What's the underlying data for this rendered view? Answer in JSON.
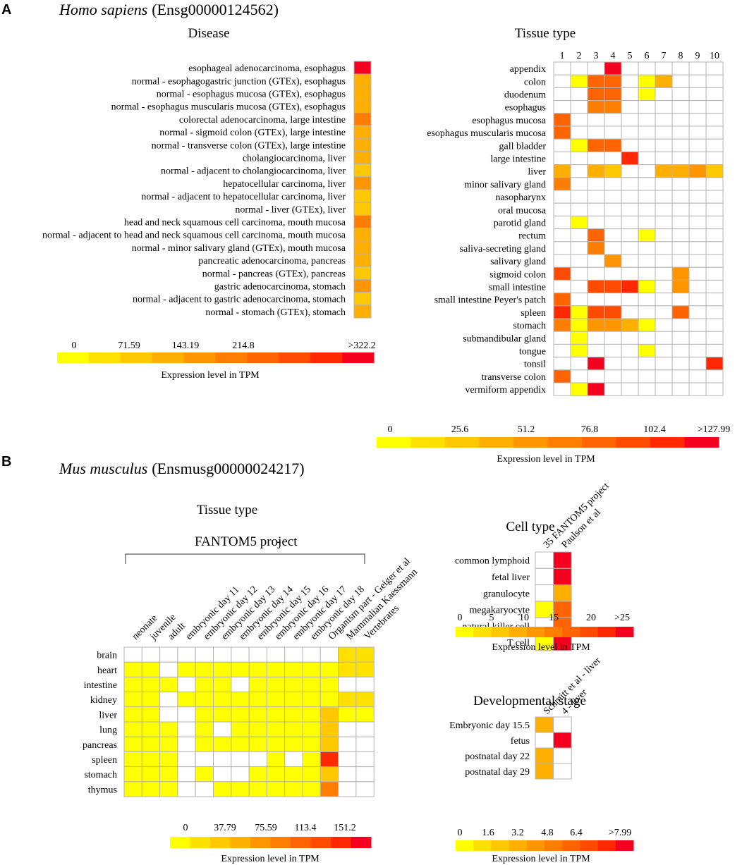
{
  "panels": {
    "a": {
      "letter": "A",
      "species": "Homo sapiens",
      "gene": "(Ensg00000124562)"
    },
    "b": {
      "letter": "B",
      "species": "Mus musculus",
      "gene": "(Ensmusg00000024217)"
    }
  },
  "colors": {
    "palette": [
      "#FFFF00",
      "#FFE100",
      "#FFC800",
      "#FFAF00",
      "#FF9600",
      "#FF7D00",
      "#FF6400",
      "#FF4B00",
      "#FF2800",
      "#F5001E"
    ],
    "grid": "#B4B4B4",
    "empty": "#FFFFFF"
  },
  "chart_data": [
    {
      "id": "human_disease",
      "type": "heatmap",
      "title": "Disease",
      "rows": [
        "esophageal adenocarcinoma, esophagus",
        "normal - esophagogastric junction (GTEx), esophagus",
        "normal - esophagus mucosa (GTEx), esophagus",
        "normal - esophagus muscularis mucosa (GTEx), esophagus",
        "colorectal adenocarcinoma, large intestine",
        "normal - sigmoid colon (GTEx), large intestine",
        "normal - transverse colon (GTEx), large intestine",
        "cholangiocarcinoma, liver",
        "normal - adjacent to cholangiocarcinoma, liver",
        "hepatocellular carcinoma, liver",
        "normal - adjacent to hepatocellular carcinoma, liver",
        "normal - liver (GTEx), liver",
        "head and neck squamous cell carcinoma, mouth mucosa",
        "normal - adjacent to head and neck squamous cell carcinoma, mouth mucosa",
        "normal - minor salivary gland (GTEx), mouth mucosa",
        "pancreatic adenocarcinoma, pancreas",
        "normal - pancreas (GTEx), pancreas",
        "gastric adenocarcinoma, stomach",
        "normal - adjacent to gastric adenocarcinoma, stomach",
        "normal - stomach (GTEx), stomach"
      ],
      "columns": [
        ""
      ],
      "levels": [
        [
          9
        ],
        [
          3
        ],
        [
          3
        ],
        [
          3
        ],
        [
          5
        ],
        [
          3
        ],
        [
          3
        ],
        [
          3
        ],
        [
          2
        ],
        [
          4
        ],
        [
          2
        ],
        [
          2
        ],
        [
          5
        ],
        [
          3
        ],
        [
          3
        ],
        [
          3
        ],
        [
          2
        ],
        [
          4
        ],
        [
          2
        ],
        [
          3
        ]
      ],
      "colorbar": {
        "ticks": [
          "0",
          "71.59",
          "143.19",
          "214.8",
          ">322.2"
        ],
        "label": "Expression level in TPM",
        "range": [
          0,
          322.2
        ]
      }
    },
    {
      "id": "human_tissue",
      "type": "heatmap",
      "title": "Tissue type",
      "rows": [
        "appendix",
        "colon",
        "duodenum",
        "esophagus",
        "esophagus mucosa",
        "esophagus muscularis mucosa",
        "gall bladder",
        "large intestine",
        "liver",
        "minor salivary gland",
        "nasopharynx",
        "oral mucosa",
        "parotid gland",
        "rectum",
        "saliva-secreting gland",
        "salivary gland",
        "sigmoid colon",
        "small intestine",
        "small intestine Peyer's patch",
        "spleen",
        "stomach",
        "submandibular gland",
        "tongue",
        "tonsil",
        "transverse colon",
        "vermiform appendix"
      ],
      "columns": [
        "1",
        "2",
        "3",
        "4",
        "5",
        "6",
        "7",
        "8",
        "9",
        "10"
      ],
      "levels": [
        [
          null,
          null,
          null,
          9,
          null,
          null,
          null,
          null,
          null,
          null
        ],
        [
          null,
          0,
          6,
          6,
          null,
          0,
          3,
          null,
          null,
          null
        ],
        [
          null,
          null,
          6,
          6,
          null,
          0,
          null,
          null,
          null,
          null
        ],
        [
          null,
          null,
          5,
          5,
          null,
          null,
          null,
          null,
          null,
          null
        ],
        [
          6,
          null,
          null,
          null,
          null,
          null,
          null,
          null,
          null,
          null
        ],
        [
          6,
          null,
          null,
          null,
          null,
          null,
          null,
          null,
          null,
          null
        ],
        [
          null,
          0,
          6,
          6,
          null,
          null,
          null,
          null,
          null,
          null
        ],
        [
          null,
          null,
          null,
          null,
          8,
          null,
          null,
          null,
          null,
          null
        ],
        [
          3,
          null,
          3,
          2,
          null,
          null,
          3,
          3,
          4,
          2
        ],
        [
          5,
          null,
          null,
          null,
          null,
          null,
          null,
          null,
          null,
          null
        ],
        [
          null,
          null,
          null,
          null,
          null,
          null,
          null,
          null,
          null,
          null
        ],
        [
          null,
          null,
          null,
          null,
          null,
          null,
          null,
          null,
          null,
          null
        ],
        [
          null,
          0,
          null,
          null,
          null,
          null,
          null,
          null,
          null,
          null
        ],
        [
          null,
          null,
          6,
          null,
          null,
          0,
          null,
          null,
          null,
          null
        ],
        [
          null,
          null,
          5,
          null,
          null,
          null,
          null,
          null,
          null,
          null
        ],
        [
          null,
          null,
          null,
          4,
          null,
          null,
          null,
          null,
          null,
          null
        ],
        [
          7,
          null,
          null,
          null,
          null,
          null,
          null,
          4,
          null,
          null
        ],
        [
          null,
          null,
          7,
          7,
          8,
          0,
          null,
          4,
          null,
          null
        ],
        [
          6,
          null,
          null,
          null,
          null,
          null,
          null,
          null,
          null,
          null
        ],
        [
          8,
          0,
          7,
          7,
          null,
          null,
          null,
          6,
          null,
          null
        ],
        [
          5,
          0,
          4,
          4,
          3,
          0,
          null,
          null,
          null,
          null
        ],
        [
          null,
          0,
          null,
          null,
          null,
          null,
          null,
          null,
          null,
          null
        ],
        [
          null,
          0,
          null,
          null,
          null,
          0,
          null,
          null,
          null,
          null
        ],
        [
          null,
          null,
          9,
          null,
          null,
          null,
          null,
          null,
          null,
          8
        ],
        [
          6,
          null,
          null,
          null,
          null,
          null,
          null,
          null,
          null,
          null
        ],
        [
          null,
          0,
          9,
          null,
          null,
          null,
          null,
          null,
          null,
          null
        ]
      ],
      "colorbar": {
        "ticks": [
          "0",
          "25.6",
          "51.2",
          "76.8",
          "102.4",
          ">127.99"
        ],
        "label": "Expression level in TPM",
        "range": [
          0,
          127.99
        ]
      }
    },
    {
      "id": "mouse_tissue",
      "type": "heatmap",
      "title": "Tissue type",
      "group_label": "FANTOM5 project",
      "group_dash": "-",
      "rows": [
        "brain",
        "heart",
        "intestine",
        "kidney",
        "liver",
        "lung",
        "pancreas",
        "spleen",
        "stomach",
        "thymus"
      ],
      "columns": [
        "neonate",
        "juvenile",
        "adult",
        "embryonic day 11",
        "embryonic day 12",
        "embryonic day 13",
        "embryonic day 14",
        "embryonic day 15",
        "embryonic day 16",
        "embryonic day 17",
        "embryonic day 18",
        "Organism part - Geiger et al",
        "Mammalian Kaessmann",
        "Vertebrates"
      ],
      "levels": [
        [
          null,
          null,
          null,
          null,
          null,
          null,
          null,
          null,
          null,
          null,
          null,
          null,
          1,
          1
        ],
        [
          0,
          0,
          null,
          0,
          0,
          0,
          0,
          0,
          0,
          0,
          0,
          0,
          1,
          1
        ],
        [
          0,
          0,
          0,
          null,
          0,
          0,
          null,
          0,
          0,
          0,
          0,
          0,
          null,
          null
        ],
        [
          0,
          0,
          null,
          0,
          0,
          0,
          0,
          0,
          0,
          0,
          0,
          0,
          1,
          1
        ],
        [
          0,
          0,
          null,
          null,
          0,
          0,
          0,
          0,
          0,
          0,
          0,
          2,
          0,
          0
        ],
        [
          0,
          0,
          0,
          null,
          0,
          null,
          0,
          0,
          0,
          0,
          0,
          2,
          null,
          null
        ],
        [
          0,
          0,
          0,
          null,
          0,
          0,
          0,
          0,
          0,
          0,
          0,
          2,
          null,
          null
        ],
        [
          0,
          0,
          0,
          null,
          null,
          null,
          null,
          null,
          0,
          null,
          0,
          8,
          null,
          null
        ],
        [
          0,
          0,
          0,
          null,
          0,
          null,
          null,
          0,
          0,
          0,
          0,
          2,
          null,
          null
        ],
        [
          0,
          0,
          0,
          null,
          null,
          0,
          0,
          0,
          0,
          0,
          0,
          5,
          null,
          null
        ]
      ],
      "colorbar": {
        "ticks": [
          "0",
          "37.79",
          "75.59",
          "113.4",
          "151.2"
        ],
        "label": "Expression level in TPM",
        "range": [
          0,
          151.2
        ]
      }
    },
    {
      "id": "mouse_cell",
      "type": "heatmap",
      "title": "Cell type",
      "rows": [
        "common lymphoid",
        "fetal liver",
        "granulocyte",
        "megakaryocyte",
        "natural killer cell",
        "T cell"
      ],
      "columns": [
        "35 FANTOM5 project",
        "Paulson et al"
      ],
      "levels": [
        [
          null,
          9
        ],
        [
          null,
          9
        ],
        [
          null,
          3
        ],
        [
          0,
          6
        ],
        [
          null,
          6
        ],
        [
          0,
          9
        ]
      ],
      "colorbar": {
        "ticks": [
          "0",
          "5",
          "10",
          "15",
          "20",
          ">25"
        ],
        "label": "Expression level in TPM",
        "range": [
          0,
          25
        ]
      }
    },
    {
      "id": "mouse_dev",
      "type": "heatmap",
      "title": "Developmental stage",
      "rows": [
        "Embryonic  day 15.5",
        "fetus",
        "postnatal day 22",
        "postnatal day 29"
      ],
      "columns": [
        "Schmitt et al - liver",
        "4 - liver"
      ],
      "levels": [
        [
          3,
          null
        ],
        [
          null,
          9
        ],
        [
          3,
          null
        ],
        [
          3,
          null
        ]
      ],
      "colorbar": {
        "ticks": [
          "0",
          "1.6",
          "3.2",
          "4.8",
          "6.4",
          ">7.99"
        ],
        "label": "Expression level in TPM",
        "range": [
          0,
          7.99
        ]
      }
    }
  ]
}
